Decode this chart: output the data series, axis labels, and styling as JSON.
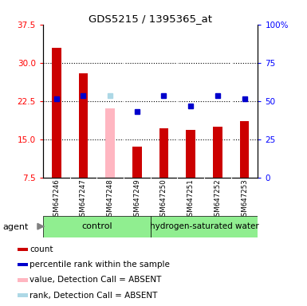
{
  "title": "GDS5215 / 1395365_at",
  "samples": [
    "GSM647246",
    "GSM647247",
    "GSM647248",
    "GSM647249",
    "GSM647250",
    "GSM647251",
    "GSM647252",
    "GSM647253"
  ],
  "count_values": [
    33.0,
    28.0,
    null,
    13.5,
    17.2,
    16.8,
    17.5,
    18.5
  ],
  "count_absent_values": [
    null,
    null,
    21.0,
    null,
    null,
    null,
    null,
    null
  ],
  "rank_values": [
    23.0,
    23.5,
    null,
    null,
    null,
    null,
    null,
    null
  ],
  "rank_absent_values": [
    null,
    null,
    23.5,
    null,
    null,
    null,
    null,
    null
  ],
  "percentile_values": [
    null,
    null,
    null,
    20.5,
    23.5,
    21.5,
    23.5,
    23.0
  ],
  "ylim_left": [
    7.5,
    37.5
  ],
  "ylim_right": [
    0,
    100
  ],
  "left_ticks": [
    7.5,
    15.0,
    22.5,
    30.0,
    37.5
  ],
  "right_ticks": [
    0,
    25,
    50,
    75,
    100
  ],
  "bar_width": 0.35,
  "count_color": "#CC0000",
  "absent_count_color": "#FFB6C1",
  "rank_color": "#0000CC",
  "absent_rank_color": "#ADD8E6",
  "percentile_color": "#0000CC",
  "green_light": "#90EE90",
  "gray_sample": "#C8C8C8",
  "legend_items": [
    {
      "label": "count",
      "color": "#CC0000"
    },
    {
      "label": "percentile rank within the sample",
      "color": "#0000CC"
    },
    {
      "label": "value, Detection Call = ABSENT",
      "color": "#FFB6C1"
    },
    {
      "label": "rank, Detection Call = ABSENT",
      "color": "#ADD8E6"
    }
  ]
}
